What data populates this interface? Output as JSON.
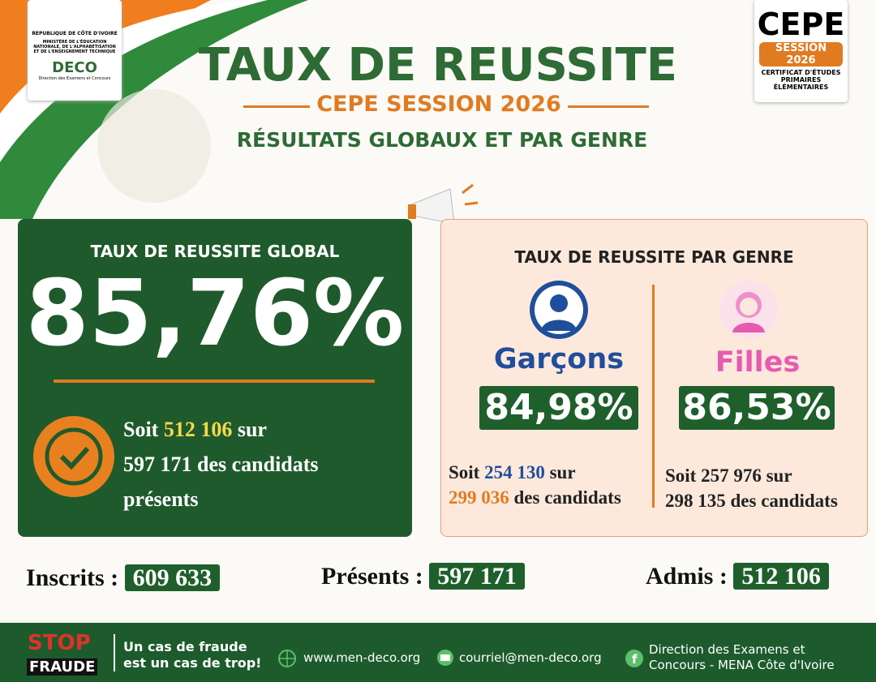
{
  "header": {
    "logo": {
      "country": "REPUBLIQUE DE CÔTE D'IVOIRE",
      "ministry": [
        "MINISTÈRE DE L'ÉDUCATION",
        "NATIONALE, DE L'ALPHABÉTISATION",
        "ET DE L'ENSEIGNEMENT TECHNIQUE"
      ],
      "brand": "DECO",
      "brand_caption": "Direction des Examens et Concours"
    },
    "title": "TAUX DE REUSSITE",
    "subtitle": "CEPE SESSION 2026",
    "heading": "RÉSULTATS GLOBAUX ET PAR GENRE",
    "badge": {
      "name": "CEPE",
      "session": "SESSION 2026",
      "lines": [
        "CERTIFICAT D'ÉTUDES",
        "PRIMAIRES",
        "ÉLÉMENTAIRES"
      ]
    }
  },
  "global": {
    "title": "TAUX DE REUSSITE GLOBAL",
    "rate": "85,76%",
    "detail": {
      "prefix": "Soit",
      "admitted": "512 106",
      "middle": "sur",
      "line2": "597 171 des candidats",
      "line3": "présents"
    }
  },
  "gender": {
    "title": "TAUX DE REUSSITE PAR GENRE",
    "boys": {
      "label": "Garçons",
      "rate": "84,98%",
      "prefix": "Soit",
      "admitted": "254 130",
      "middle": "sur",
      "present": "299 036",
      "suffix": "des candidats"
    },
    "girls": {
      "label": "Filles",
      "rate": "86,53%",
      "line1": "Soit 257 976 sur",
      "line2": "298 135 des candidats"
    }
  },
  "stats": [
    {
      "label": "Inscrits :",
      "value": "609 633"
    },
    {
      "label": "Présents :",
      "value": "597 171"
    },
    {
      "label": "Admis :",
      "value": "512 106"
    }
  ],
  "footer": {
    "stop": "STOP",
    "fraude": "FRAUDE",
    "slogan": [
      "Un cas de fraude",
      "est un cas de trop!"
    ],
    "website": "www.men-deco.org",
    "email": "courriel@men-deco.org",
    "direction": [
      "Direction des Examens et",
      "Concours - MENA Côte d'Ivoire"
    ]
  }
}
